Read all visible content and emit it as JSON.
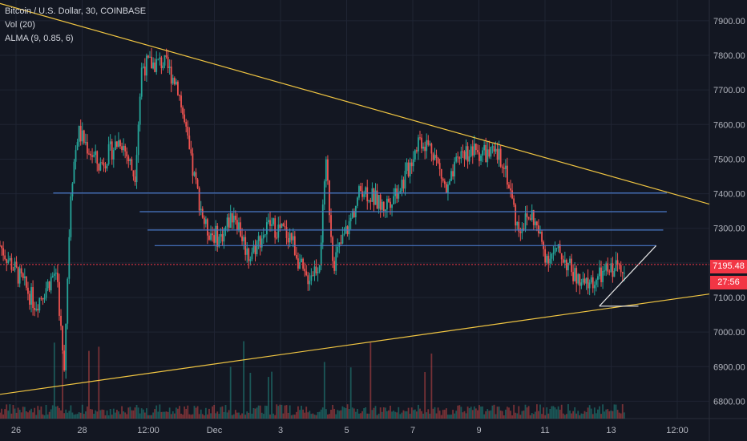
{
  "legend": {
    "symbol": "Bitcoin / U.S. Dollar, 30, COINBASE",
    "vol": "Vol (20)",
    "alma": "ALMA (9, 0.85, 6)"
  },
  "price_tag": {
    "price": "7195.48",
    "countdown": "27:56"
  },
  "colors": {
    "background": "#131722",
    "grid": "#1f2433",
    "up": "#26a69a",
    "down": "#ef5350",
    "trendline": "#f0c542",
    "hline": "#4a78c8",
    "wedge": "#e8e8e8",
    "price_line": "#f23645"
  },
  "chart_data": {
    "type": "candlestick",
    "x_ticks": [
      "26",
      "28",
      "12:00",
      "Dec",
      "3",
      "5",
      "7",
      "9",
      "11",
      "13",
      "12:00"
    ],
    "y_ticks": [
      "7900.00",
      "7800.00",
      "7700.00",
      "7600.00",
      "7500.00",
      "7400.00",
      "7300.00",
      "7200.00",
      "7100.00",
      "7000.00",
      "6900.00",
      "6800.00"
    ],
    "ylim": [
      6750,
      7960
    ],
    "last_price": 7195.48,
    "key_prices": [
      {
        "t": 0,
        "p": 7250
      },
      {
        "t": 0.03,
        "p": 7150
      },
      {
        "t": 0.05,
        "p": 7080
      },
      {
        "t": 0.08,
        "p": 7180
      },
      {
        "t": 0.09,
        "p": 6880
      },
      {
        "t": 0.1,
        "p": 7420
      },
      {
        "t": 0.11,
        "p": 7580
      },
      {
        "t": 0.14,
        "p": 7480
      },
      {
        "t": 0.17,
        "p": 7560
      },
      {
        "t": 0.19,
        "p": 7450
      },
      {
        "t": 0.2,
        "p": 7770
      },
      {
        "t": 0.23,
        "p": 7780
      },
      {
        "t": 0.25,
        "p": 7720
      },
      {
        "t": 0.27,
        "p": 7480
      },
      {
        "t": 0.29,
        "p": 7300
      },
      {
        "t": 0.31,
        "p": 7270
      },
      {
        "t": 0.33,
        "p": 7350
      },
      {
        "t": 0.35,
        "p": 7220
      },
      {
        "t": 0.38,
        "p": 7310
      },
      {
        "t": 0.41,
        "p": 7280
      },
      {
        "t": 0.43,
        "p": 7150
      },
      {
        "t": 0.45,
        "p": 7200
      },
      {
        "t": 0.46,
        "p": 7480
      },
      {
        "t": 0.47,
        "p": 7200
      },
      {
        "t": 0.49,
        "p": 7300
      },
      {
        "t": 0.51,
        "p": 7420
      },
      {
        "t": 0.54,
        "p": 7360
      },
      {
        "t": 0.57,
        "p": 7440
      },
      {
        "t": 0.59,
        "p": 7560
      },
      {
        "t": 0.61,
        "p": 7530
      },
      {
        "t": 0.63,
        "p": 7400
      },
      {
        "t": 0.65,
        "p": 7520
      },
      {
        "t": 0.68,
        "p": 7520
      },
      {
        "t": 0.71,
        "p": 7500
      },
      {
        "t": 0.73,
        "p": 7300
      },
      {
        "t": 0.75,
        "p": 7340
      },
      {
        "t": 0.77,
        "p": 7220
      },
      {
        "t": 0.79,
        "p": 7230
      },
      {
        "t": 0.82,
        "p": 7130
      },
      {
        "t": 0.84,
        "p": 7150
      },
      {
        "t": 0.86,
        "p": 7180
      },
      {
        "t": 0.88,
        "p": 7200
      }
    ],
    "trendlines": [
      {
        "name": "descending-resistance",
        "from": {
          "t": 0,
          "p": 7950
        },
        "to": {
          "t": 1,
          "p": 7370
        }
      },
      {
        "name": "ascending-support",
        "from": {
          "t": 0,
          "p": 6820
        },
        "to": {
          "t": 1,
          "p": 7110
        }
      }
    ],
    "horizontal_levels": [
      {
        "price": 7402,
        "t_start": 0.075,
        "t_end": 0.94
      },
      {
        "price": 7348,
        "t_start": 0.197,
        "t_end": 0.94
      },
      {
        "price": 7295,
        "t_start": 0.208,
        "t_end": 0.935
      },
      {
        "price": 7250,
        "t_start": 0.218,
        "t_end": 0.925
      }
    ],
    "wedge_lines": [
      {
        "from": {
          "t": 0.845,
          "p": 7075
        },
        "to": {
          "t": 0.925,
          "p": 7250
        }
      },
      {
        "from": {
          "t": 0.845,
          "p": 7075
        },
        "to": {
          "t": 0.9,
          "p": 7075
        }
      }
    ]
  }
}
